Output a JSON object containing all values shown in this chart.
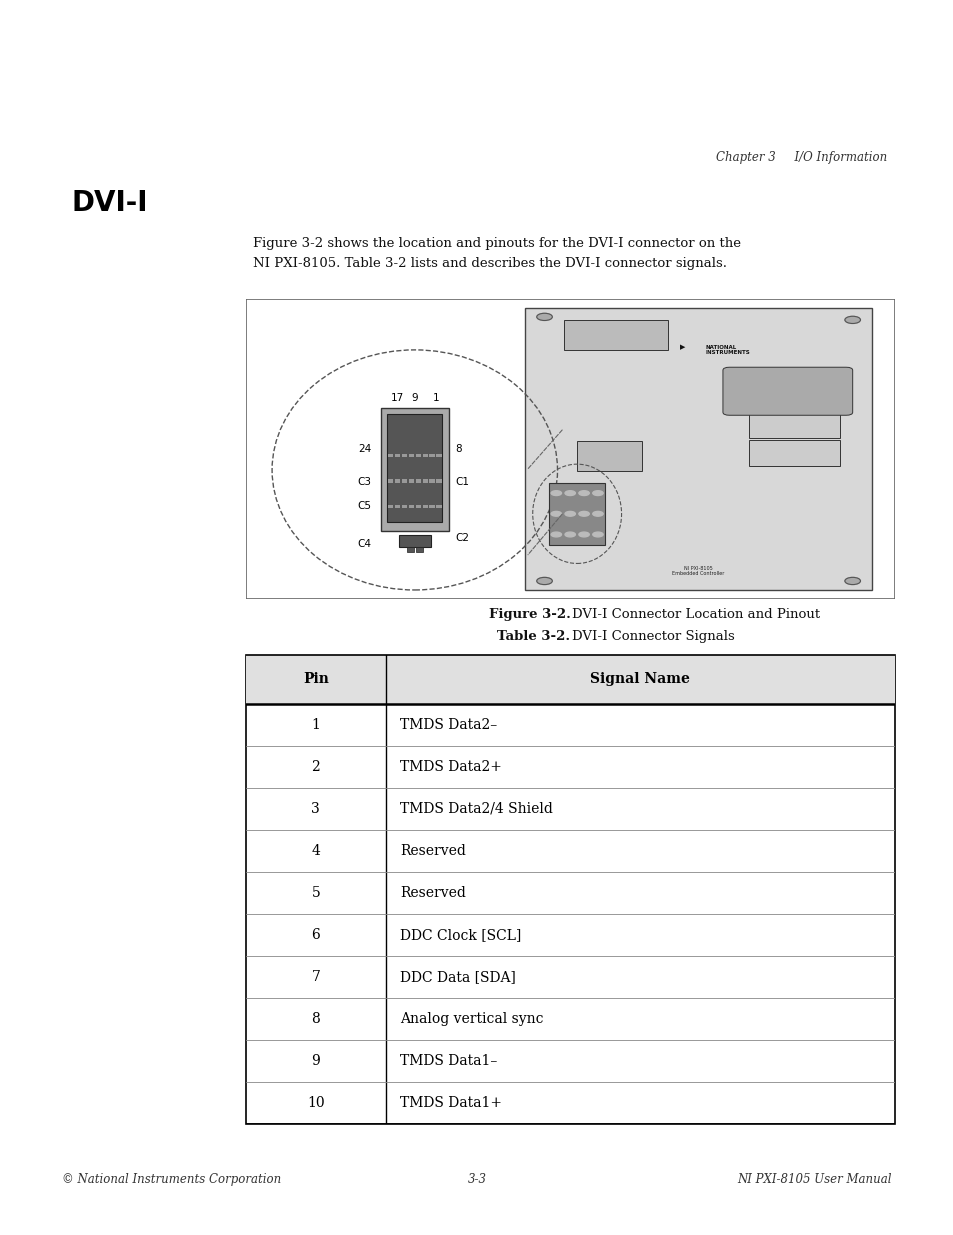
{
  "page_bg": "#ffffff",
  "header_text": "Chapter 3     I/O Information",
  "title_text": "DVI-I",
  "body_text_line1": "Figure 3-2 shows the location and pinouts for the DVI-I connector on the",
  "body_text_line2": "NI PXI-8105. Table 3-2 lists and describes the DVI-I connector signals.",
  "fig_caption_bold": "Figure 3-2.",
  "fig_caption_normal": "  DVI-I Connector Location and Pinout",
  "table_caption_bold": "Table 3-2.",
  "table_caption_normal": "  DVI-I Connector Signals",
  "table_col_headers": [
    "Pin",
    "Signal Name"
  ],
  "table_rows": [
    [
      "1",
      "TMDS Data2–"
    ],
    [
      "2",
      "TMDS Data2+"
    ],
    [
      "3",
      "TMDS Data2/4 Shield"
    ],
    [
      "4",
      "Reserved"
    ],
    [
      "5",
      "Reserved"
    ],
    [
      "6",
      "DDC Clock [SCL]"
    ],
    [
      "7",
      "DDC Data [SDA]"
    ],
    [
      "8",
      "Analog vertical sync"
    ],
    [
      "9",
      "TMDS Data1–"
    ],
    [
      "10",
      "TMDS Data1+"
    ]
  ],
  "footer_left": "© National Instruments Corporation",
  "footer_center": "3-3",
  "footer_right": "NI PXI-8105 User Manual"
}
